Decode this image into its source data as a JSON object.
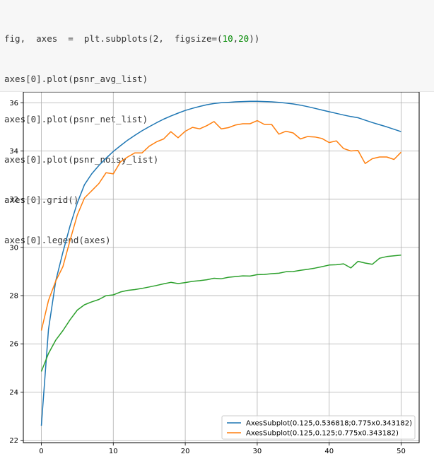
{
  "code": {
    "lines": [
      [
        {
          "t": "fig,  axes  =  plt.subplots(2,  figsize=(",
          "c": ""
        },
        {
          "t": "10",
          "c": "num"
        },
        {
          "t": ",",
          "c": ""
        },
        {
          "t": "20",
          "c": "num"
        },
        {
          "t": "))",
          "c": ""
        }
      ],
      [
        {
          "t": "axes[0].plot(psnr_avg_list)",
          "c": ""
        }
      ],
      [
        {
          "t": "axes[0].plot(psnr_net_list)",
          "c": ""
        }
      ],
      [
        {
          "t": "axes[0].plot(psnr_noisy_list)",
          "c": ""
        }
      ],
      [
        {
          "t": "axes[0].grid()",
          "c": ""
        }
      ],
      [
        {
          "t": "axes[0].legend(axes)",
          "c": ""
        }
      ]
    ]
  },
  "chart_data": {
    "type": "line",
    "xlim": [
      -2.5,
      52.5
    ],
    "ylim": [
      21.9,
      36.45
    ],
    "xticks": [
      0,
      10,
      20,
      30,
      40,
      50
    ],
    "yticks": [
      22,
      24,
      26,
      28,
      30,
      32,
      34,
      36
    ],
    "grid": true,
    "legend_position": "lower-right",
    "series": [
      {
        "color": "#1f77b4",
        "legend_label": "AxesSubplot(0.125,0.536818;0.775x0.343182)",
        "x": [
          0,
          1,
          2,
          3,
          4,
          5,
          6,
          7,
          8,
          9,
          10,
          11,
          12,
          13,
          14,
          15,
          16,
          17,
          18,
          19,
          20,
          21,
          22,
          23,
          24,
          25,
          26,
          27,
          28,
          29,
          30,
          31,
          32,
          33,
          34,
          35,
          36,
          37,
          38,
          39,
          40,
          41,
          42,
          43,
          44,
          45,
          46,
          47,
          48,
          49,
          50
        ],
        "values": [
          22.6,
          26.6,
          28.6,
          29.8,
          30.9,
          31.85,
          32.6,
          33.05,
          33.4,
          33.7,
          33.98,
          34.22,
          34.45,
          34.65,
          34.84,
          35.01,
          35.17,
          35.32,
          35.45,
          35.57,
          35.68,
          35.77,
          35.85,
          35.92,
          35.97,
          36.0,
          36.02,
          36.04,
          36.05,
          36.06,
          36.06,
          36.05,
          36.04,
          36.02,
          35.99,
          35.95,
          35.9,
          35.84,
          35.77,
          35.7,
          35.63,
          35.56,
          35.49,
          35.43,
          35.38,
          35.28,
          35.18,
          35.09,
          35.0,
          34.9,
          34.8
        ]
      },
      {
        "color": "#ff7f0e",
        "legend_label": "AxesSubplot(0.125,0.125;0.775x0.343182)",
        "x": [
          0,
          1,
          2,
          3,
          4,
          5,
          6,
          7,
          8,
          9,
          10,
          11,
          12,
          13,
          14,
          15,
          16,
          17,
          18,
          19,
          20,
          21,
          22,
          23,
          24,
          25,
          26,
          27,
          28,
          29,
          30,
          31,
          32,
          33,
          34,
          35,
          36,
          37,
          38,
          39,
          40,
          41,
          42,
          43,
          44,
          45,
          46,
          47,
          48,
          49,
          50
        ],
        "values": [
          26.55,
          27.8,
          28.6,
          29.2,
          30.3,
          31.35,
          32.05,
          32.35,
          32.65,
          33.1,
          33.05,
          33.55,
          33.75,
          33.92,
          33.92,
          34.2,
          34.38,
          34.5,
          34.8,
          34.55,
          34.82,
          34.98,
          34.92,
          35.05,
          35.22,
          34.92,
          34.97,
          35.08,
          35.13,
          35.13,
          35.26,
          35.1,
          35.1,
          34.7,
          34.82,
          34.75,
          34.5,
          34.6,
          34.58,
          34.52,
          34.35,
          34.42,
          34.1,
          34.0,
          34.02,
          33.48,
          33.68,
          33.75,
          33.75,
          33.65,
          33.95
        ]
      },
      {
        "color": "#2ca02c",
        "x": [
          0,
          1,
          2,
          3,
          4,
          5,
          6,
          7,
          8,
          9,
          10,
          11,
          12,
          13,
          14,
          15,
          16,
          17,
          18,
          19,
          20,
          21,
          22,
          23,
          24,
          25,
          26,
          27,
          28,
          29,
          30,
          31,
          32,
          33,
          34,
          35,
          36,
          37,
          38,
          39,
          40,
          41,
          42,
          43,
          44,
          45,
          46,
          47,
          48,
          49,
          50
        ],
        "values": [
          24.85,
          25.6,
          26.15,
          26.55,
          27.0,
          27.4,
          27.62,
          27.74,
          27.84,
          28.0,
          28.03,
          28.15,
          28.22,
          28.25,
          28.3,
          28.36,
          28.42,
          28.49,
          28.55,
          28.5,
          28.54,
          28.59,
          28.62,
          28.66,
          28.72,
          28.7,
          28.76,
          28.79,
          28.82,
          28.81,
          28.87,
          28.88,
          28.91,
          28.93,
          28.99,
          29.0,
          29.05,
          29.09,
          29.14,
          29.2,
          29.27,
          29.28,
          29.32,
          29.15,
          29.42,
          29.35,
          29.3,
          29.55,
          29.62,
          29.65,
          29.68
        ]
      }
    ]
  }
}
